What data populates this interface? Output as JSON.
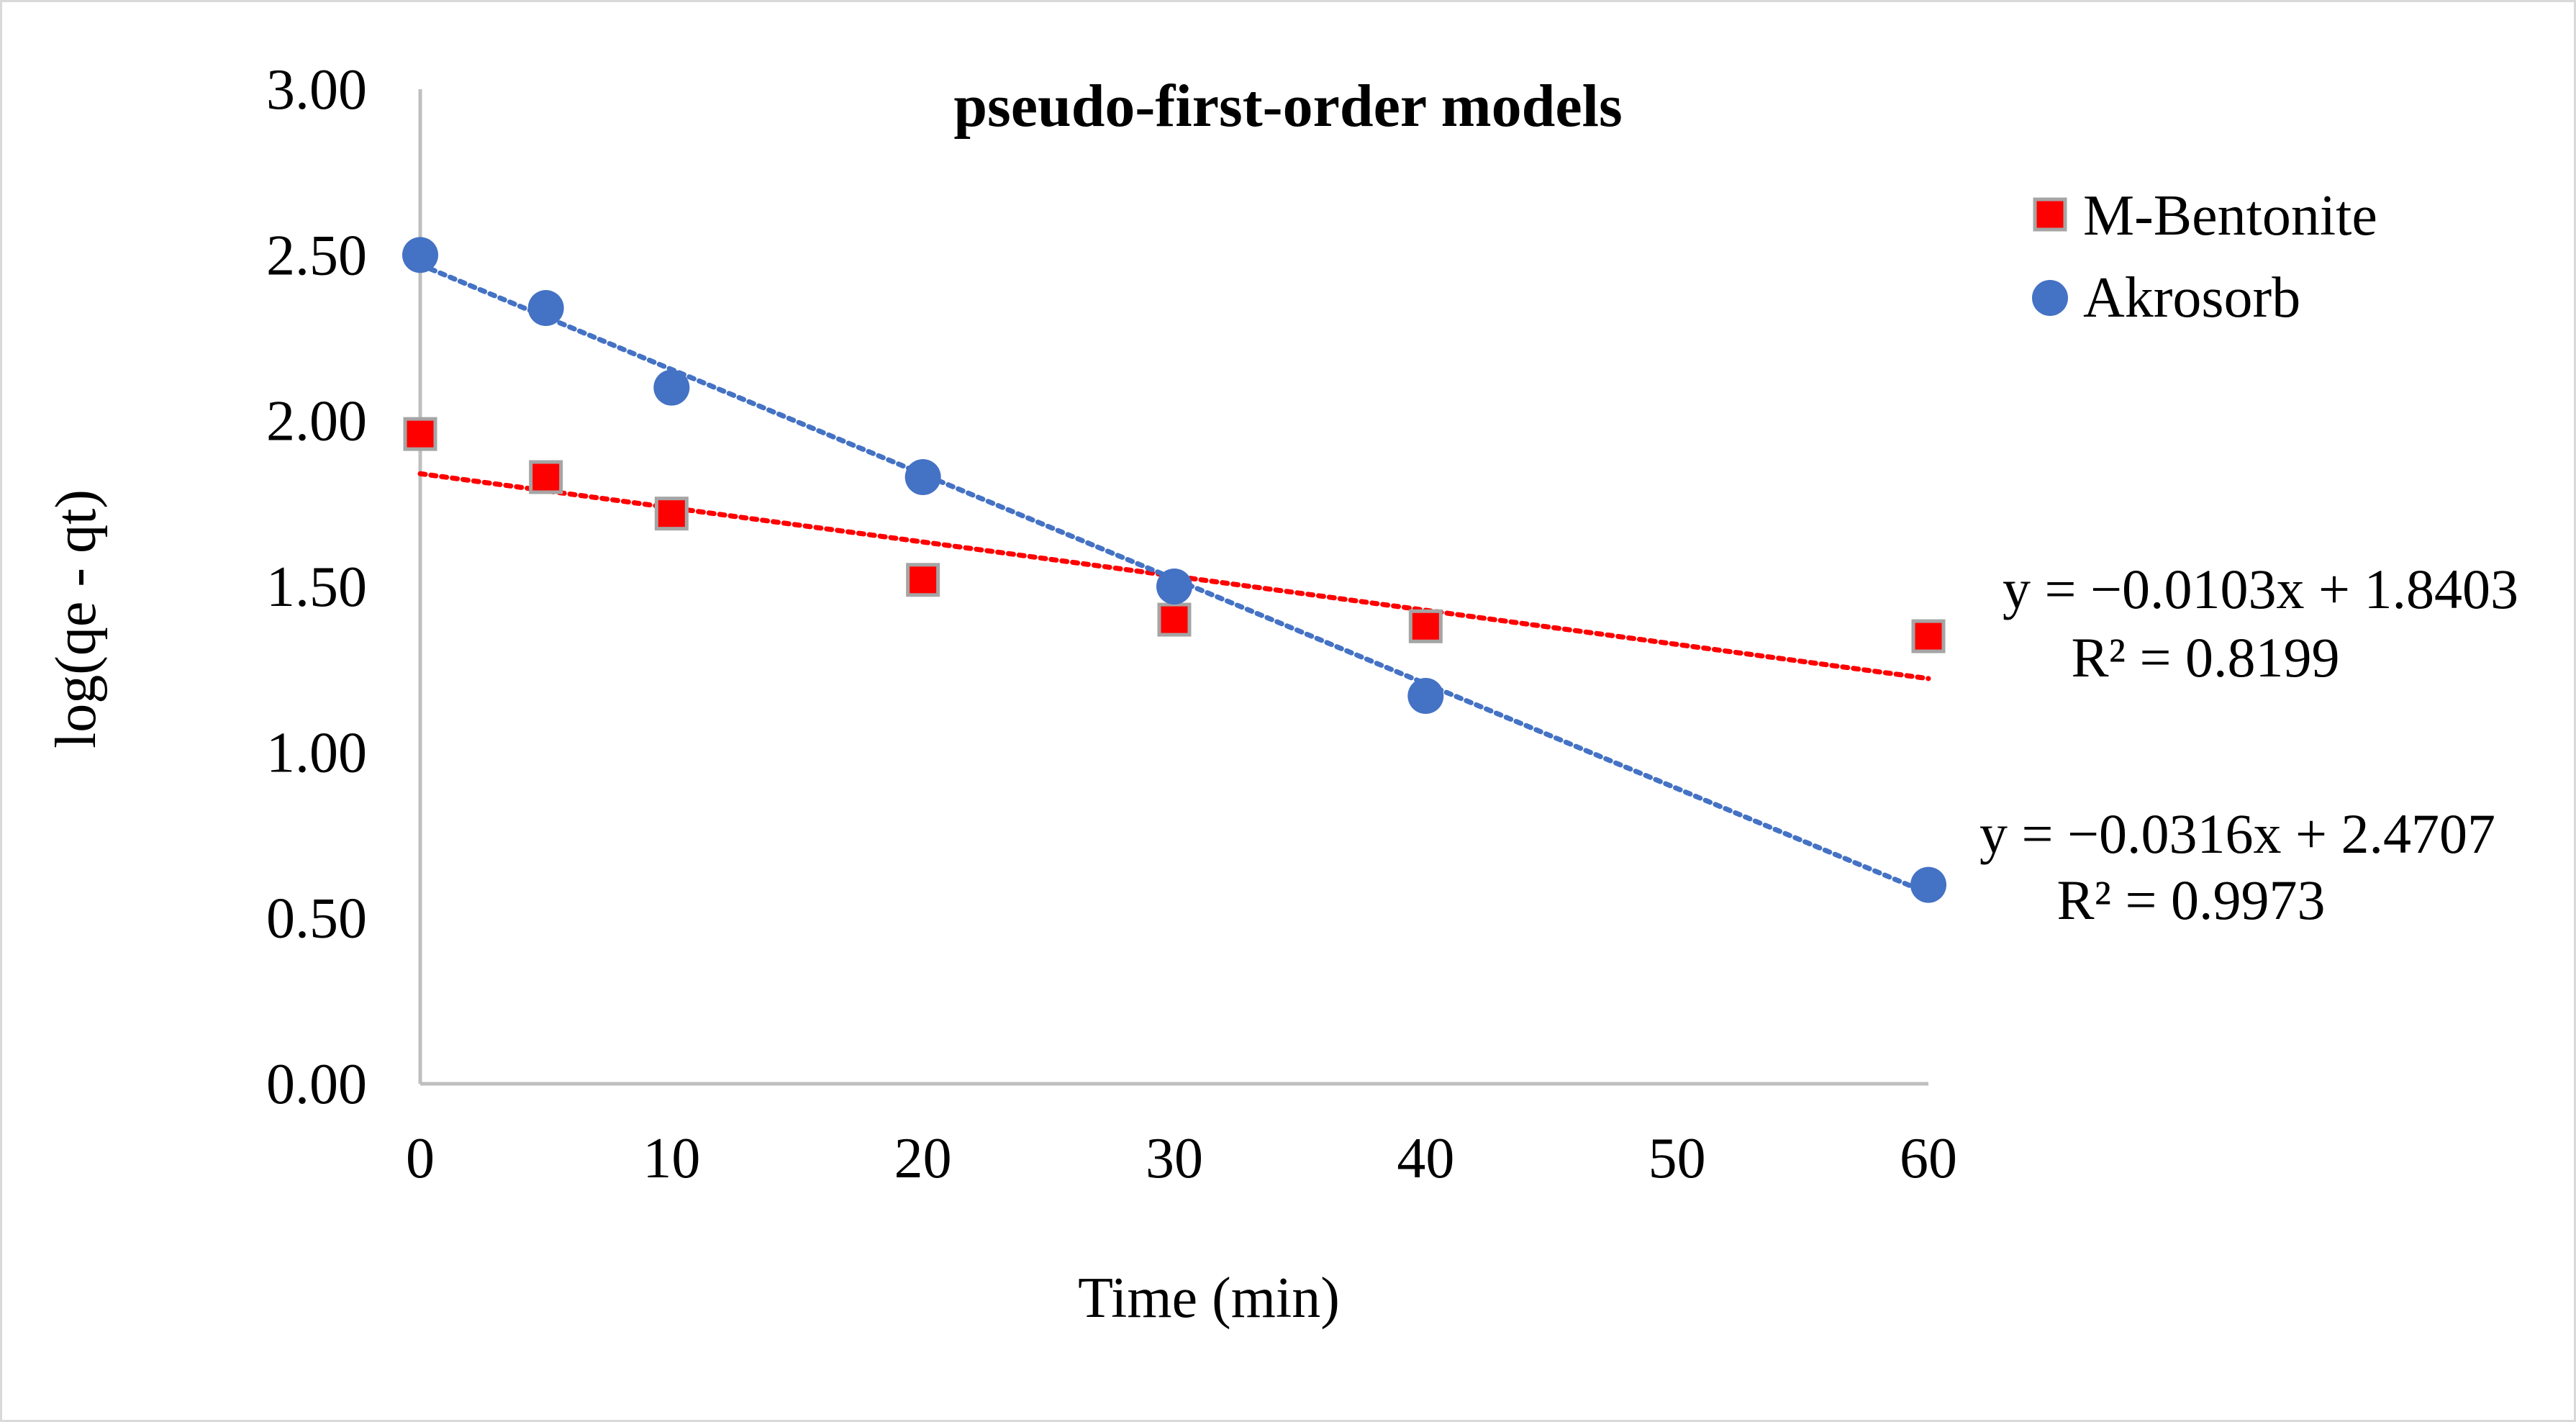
{
  "chart_data": {
    "type": "scatter",
    "title": "pseudo-first-order models",
    "xlabel": "Time (min)",
    "ylabel": "log(qe - qt)",
    "xlim": [
      0,
      60
    ],
    "ylim": [
      0,
      3
    ],
    "x_ticks": [
      0,
      10,
      20,
      30,
      40,
      50,
      60
    ],
    "y_ticks": [
      "0.00",
      "0.50",
      "1.00",
      "1.50",
      "2.00",
      "2.50",
      "3.00"
    ],
    "grid": false,
    "legend_position": "top-right",
    "series": [
      {
        "name": "M-Bentonite",
        "marker": "square",
        "color": "#ff0000",
        "edge_color": "#a5a5a5",
        "x": [
          0,
          5,
          10,
          20,
          30,
          40,
          60
        ],
        "y": [
          1.96,
          1.83,
          1.72,
          1.52,
          1.4,
          1.38,
          1.35
        ],
        "trendline": {
          "slope": -0.0103,
          "intercept": 1.8403,
          "color": "#ff0000",
          "equation": "y = −0.0103x + 1.8403",
          "r2": "R² = 0.8199"
        }
      },
      {
        "name": "Akrosorb",
        "marker": "circle",
        "color": "#4472c4",
        "x": [
          0,
          5,
          10,
          20,
          30,
          40,
          60
        ],
        "y": [
          2.5,
          2.34,
          2.1,
          1.83,
          1.5,
          1.17,
          0.6
        ],
        "trendline": {
          "slope": -0.0316,
          "intercept": 2.4707,
          "color": "#4472c4",
          "equation": "y = −0.0316x + 2.4707",
          "r2": "R² = 0.9973"
        }
      }
    ]
  }
}
